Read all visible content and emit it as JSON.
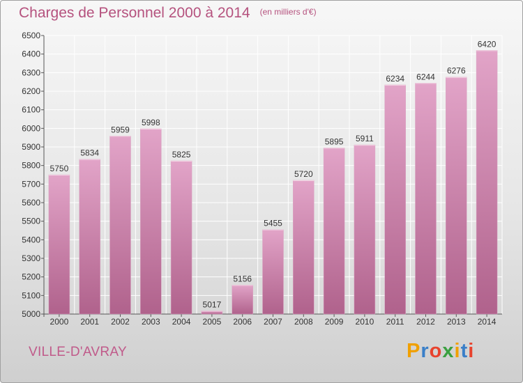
{
  "header": {
    "title": "Charges de Personnel 2000 à 2014",
    "subtitle": "(en milliers d'€)"
  },
  "footer": {
    "commune": "VILLE-D'AVRAY",
    "brand": "Proxiti",
    "brand_colors": [
      "#f0a000",
      "#3a7fc8",
      "#e8432e",
      "#3aa040",
      "#f0a000",
      "#3a7fc8",
      "#e8432e"
    ]
  },
  "colors": {
    "bar_top": "#e2a4c8",
    "bar_bottom": "#b0628c",
    "grid": "#ffffff",
    "text": "#333333",
    "accent": "#b5527e"
  },
  "chart_data": {
    "type": "bar",
    "title": "Charges de Personnel 2000 à 2014",
    "subtitle": "(en milliers d'€)",
    "categories": [
      "2000",
      "2001",
      "2002",
      "2003",
      "2004",
      "2005",
      "2006",
      "2007",
      "2008",
      "2009",
      "2010",
      "2011",
      "2012",
      "2013",
      "2014"
    ],
    "values": [
      5750,
      5834,
      5959,
      5998,
      5825,
      5017,
      5156,
      5455,
      5720,
      5895,
      5911,
      6234,
      6244,
      6276,
      6420
    ],
    "ylim": [
      5000,
      6500
    ],
    "yticks": [
      5000,
      5100,
      5200,
      5300,
      5400,
      5500,
      5600,
      5700,
      5800,
      5900,
      6000,
      6100,
      6200,
      6300,
      6400,
      6500
    ],
    "grid": true,
    "xlabel": "",
    "ylabel": ""
  }
}
